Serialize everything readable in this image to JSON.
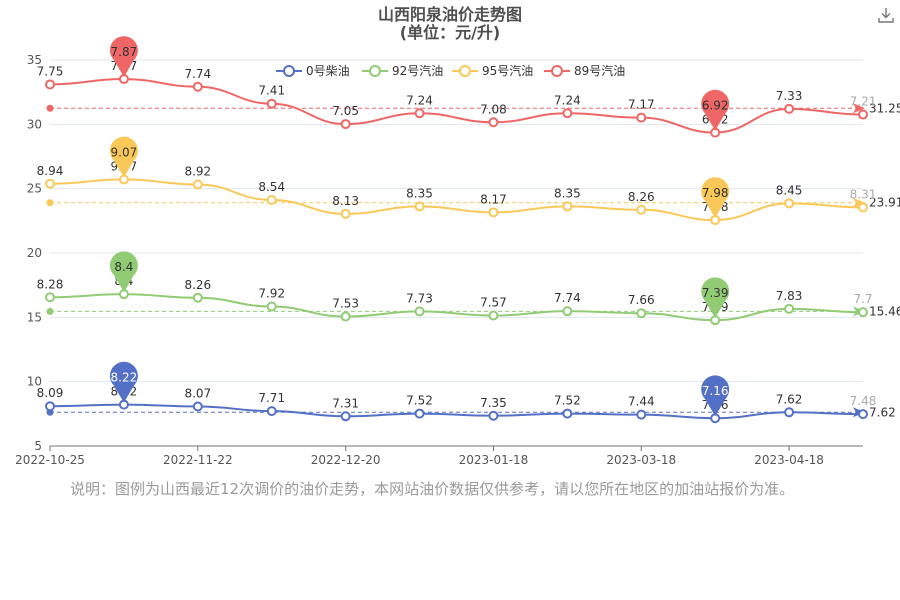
{
  "page": {
    "title_line1": "山西阳泉油价走势图",
    "title_line2": "(单位：元/升)",
    "note": "说明：图例为山西最近12次调价的油价走势，本网站油价数据仅供参考，请以您所在地区的加油站报价为准。",
    "download_icon": "download-icon"
  },
  "chart_data": {
    "type": "line",
    "title": "山西阳泉油价走势图",
    "subtitle": "(单位：元/升)",
    "y_ticks": [
      5,
      10,
      15,
      20,
      25,
      30,
      35
    ],
    "ylim": [
      5,
      35
    ],
    "x_tick_labels": [
      "2022-10-25",
      "2022-11-22",
      "2022-12-20",
      "2023-01-18",
      "2023-03-18",
      "2023-04-18"
    ],
    "x_tick_index": [
      0,
      2,
      4,
      6,
      8,
      10
    ],
    "legend_position": "top-center",
    "grid": true,
    "series": [
      {
        "name": "0号柴油",
        "color": "#5470c6",
        "values": [
          8.09,
          8.22,
          8.07,
          7.71,
          7.31,
          7.52,
          7.35,
          7.52,
          7.44,
          7.16,
          7.62,
          7.48
        ],
        "labels": [
          "8.09",
          "8.22",
          "8.07",
          "7.71",
          "7.31",
          "7.52",
          "7.35",
          "7.52",
          "7.44",
          "7.16",
          "7.62",
          "7.48"
        ],
        "plot_y": [
          8.09,
          8.22,
          8.07,
          7.71,
          7.31,
          7.52,
          7.35,
          7.52,
          7.44,
          7.16,
          7.62,
          7.48
        ],
        "max": {
          "index": 1,
          "value": "8.22"
        },
        "min": {
          "index": 9,
          "value": "7.16"
        },
        "average_y": 7.62,
        "average_label": "7.62"
      },
      {
        "name": "92号汽油",
        "color": "#91cc75",
        "values": [
          8.28,
          8.4,
          8.26,
          7.92,
          7.53,
          7.73,
          7.57,
          7.74,
          7.66,
          7.39,
          7.83,
          7.7
        ],
        "labels": [
          "8.28",
          "8.4",
          "8.26",
          "7.92",
          "7.53",
          "7.73",
          "7.57",
          "7.74",
          "7.66",
          "7.39",
          "7.83",
          "7.7"
        ],
        "plot_y": [
          16.56,
          16.8,
          16.52,
          15.84,
          15.06,
          15.46,
          15.14,
          15.48,
          15.32,
          14.78,
          15.66,
          15.4
        ],
        "max": {
          "index": 1,
          "value": "8.4"
        },
        "min": {
          "index": 9,
          "value": "7.39"
        },
        "average_y": 15.46,
        "average_label": "15.46"
      },
      {
        "name": "95号汽油",
        "color": "#fac858",
        "values": [
          8.94,
          9.07,
          8.92,
          8.54,
          8.13,
          8.35,
          8.17,
          8.35,
          8.26,
          7.98,
          8.45,
          8.31
        ],
        "labels": [
          "8.94",
          "9.07",
          "8.92",
          "8.54",
          "8.13",
          "8.35",
          "8.17",
          "8.35",
          "8.26",
          "7.98",
          "8.45",
          "8.31"
        ],
        "plot_y": [
          25.38,
          25.72,
          25.32,
          24.12,
          23.04,
          23.62,
          23.16,
          23.62,
          23.36,
          22.56,
          23.86,
          23.54
        ],
        "max": {
          "index": 1,
          "value": "9.07"
        },
        "min": {
          "index": 9,
          "value": "7.98"
        },
        "average_y": 23.91,
        "average_label": "23.91"
      },
      {
        "name": "89号汽油",
        "color": "#ee6666",
        "values": [
          7.75,
          7.87,
          7.74,
          7.41,
          7.05,
          7.24,
          7.08,
          7.24,
          7.17,
          6.92,
          7.33,
          7.21
        ],
        "labels": [
          "7.75",
          "7.87",
          "7.74",
          "7.41",
          "7.05",
          "7.24",
          "7.08",
          "7.24",
          "7.17",
          "6.92",
          "7.33",
          "7.21"
        ],
        "plot_y": [
          33.1,
          33.52,
          32.92,
          31.6,
          30.02,
          30.86,
          30.16,
          30.86,
          30.52,
          29.36,
          31.2,
          30.76
        ],
        "max": {
          "index": 1,
          "value": "7.87"
        },
        "min": {
          "index": 9,
          "value": "6.92"
        },
        "average_y": 31.25,
        "average_label": "31.25"
      }
    ]
  }
}
